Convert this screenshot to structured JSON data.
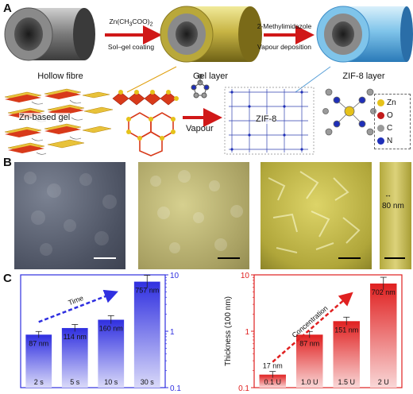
{
  "panel_a": {
    "letter": "A",
    "labels": {
      "fibre1": "Hollow fibre",
      "fibre2": "Gel layer",
      "fibre3": "ZIF-8 layer"
    },
    "arrow1": {
      "top_prefix": "Zn(CH",
      "top_sub1": "3",
      "top_mid": "COO)",
      "top_sub2": "2",
      "bottom": "Sol–gel coating"
    },
    "arrow2": {
      "top": "2-Methylimidazole",
      "bottom": "Vapour deposition"
    },
    "gel_label": "Zn-based gel",
    "vapour_label": "Vapour",
    "zif_label": "ZIF-8",
    "legend": [
      {
        "symbol": "Zn",
        "color": "#e6c21a"
      },
      {
        "symbol": "O",
        "color": "#c21b1b"
      },
      {
        "symbol": "C",
        "color": "#9a9a9a"
      },
      {
        "symbol": "N",
        "color": "#1f2fb8"
      }
    ]
  },
  "panel_b": {
    "letter": "B",
    "scale_annotation": "80 nm"
  },
  "panel_c": {
    "letter": "C"
  },
  "chart_data": [
    {
      "type": "bar",
      "categories": [
        "2 s",
        "5 s",
        "10 s",
        "30 s"
      ],
      "values": [
        87,
        114,
        160,
        757
      ],
      "value_labels": [
        "87 nm",
        "114 nm",
        "160 nm",
        "757 nm"
      ],
      "annotation": "Time",
      "yscale": "log",
      "ylim": [
        0.1,
        10
      ],
      "y_ticks": [
        "0.1",
        "1",
        "10"
      ],
      "axis_side": "right",
      "color": "#2f2fe0"
    },
    {
      "type": "bar",
      "categories": [
        "0.1 U",
        "1.0 U",
        "1.5 U",
        "2 U"
      ],
      "values": [
        17,
        87,
        151,
        702
      ],
      "value_labels": [
        "17 nm",
        "87 nm",
        "151 nm",
        "702 nm"
      ],
      "annotation": "Concentration",
      "ylabel": "Thickness (100 nm)",
      "yscale": "log",
      "ylim": [
        0.1,
        10
      ],
      "y_ticks": [
        "0.1",
        "1",
        "10"
      ],
      "axis_side": "left",
      "color": "#e02020"
    }
  ]
}
